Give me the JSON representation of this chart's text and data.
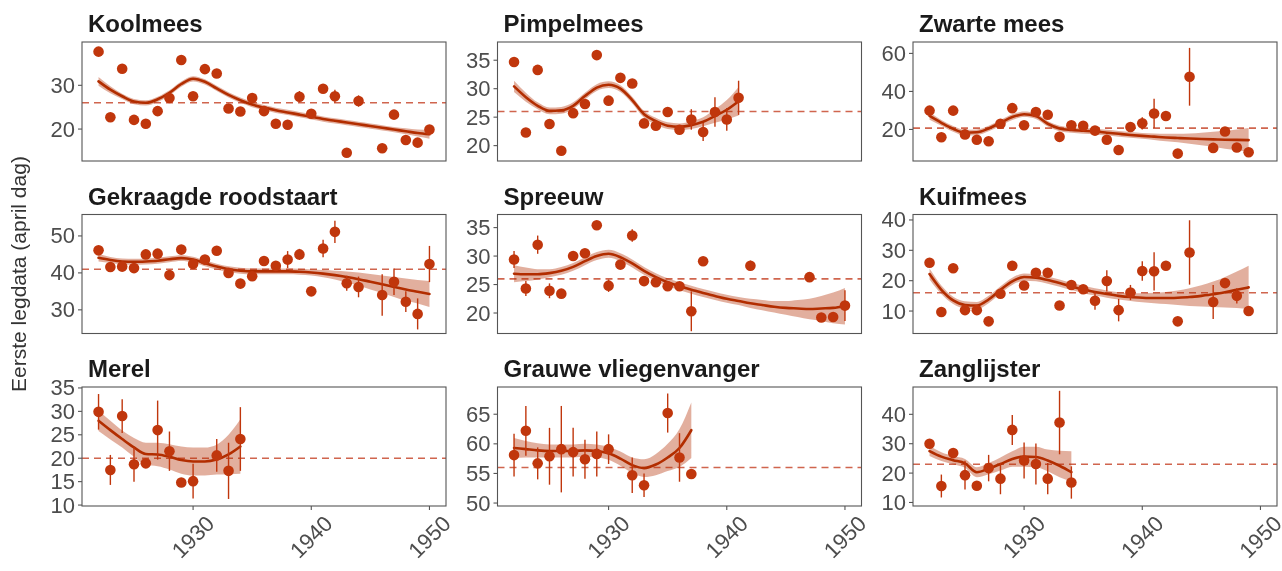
{
  "chart_data": [
    {
      "type": "scatter",
      "title": "Koolmees",
      "xlim": [
        1920.6,
        1951.4
      ],
      "ylim": [
        12.7,
        39.9
      ],
      "yticks": [
        20,
        30
      ],
      "tick_labels": "y",
      "series": [
        {
          "type": "scatter",
          "marker": "circle",
          "color": "#c0360c",
          "x": [
            1922,
            1923,
            1924,
            1925,
            1926,
            1927,
            1928,
            1929,
            1930,
            1931,
            1932,
            1933,
            1934,
            1935,
            1936,
            1937,
            1938,
            1939,
            1940,
            1941,
            1942,
            1943,
            1944,
            1946,
            1947,
            1948,
            1949,
            1950
          ],
          "values": [
            37.7,
            22.7,
            33.8,
            22.1,
            21.2,
            24.1,
            27.1,
            35.8,
            27.5,
            33.7,
            32.7,
            24.7,
            24.0,
            27.1,
            24.1,
            21.2,
            21.0,
            27.4,
            23.5,
            29.2,
            27.5,
            14.6,
            26.4,
            15.6,
            23.3,
            17.5,
            16.9,
            19.9
          ],
          "errors": [
            null,
            null,
            null,
            null,
            null,
            null,
            null,
            null,
            null,
            null,
            null,
            null,
            null,
            null,
            null,
            null,
            null,
            1.3,
            null,
            null,
            1.5,
            null,
            1.3,
            1.0,
            null,
            null,
            null,
            null
          ]
        },
        {
          "type": "line",
          "color": "#b22d00",
          "x": [
            1922,
            1923,
            1924,
            1925,
            1926,
            1927,
            1928,
            1929,
            1930,
            1931,
            1932,
            1933,
            1934,
            1935,
            1936,
            1937,
            1938,
            1939,
            1940,
            1941,
            1942,
            1943,
            1944,
            1945,
            1946,
            1947,
            1948,
            1949,
            1950
          ],
          "values": [
            30.9,
            29.0,
            27.5,
            26.3,
            26.0,
            26.8,
            28.3,
            30.3,
            31.5,
            30.8,
            29.3,
            27.8,
            26.6,
            25.6,
            24.9,
            24.3,
            23.8,
            23.3,
            22.8,
            22.3,
            21.9,
            21.5,
            21.1,
            20.7,
            20.3,
            19.9,
            19.5,
            19.1,
            18.8
          ],
          "lower": [
            29.9,
            28.2,
            26.9,
            25.7,
            25.4,
            26.2,
            27.7,
            29.7,
            30.9,
            30.2,
            28.7,
            27.2,
            26.0,
            25.0,
            24.3,
            23.7,
            23.2,
            22.7,
            22.2,
            21.7,
            21.3,
            20.9,
            20.5,
            20.1,
            19.7,
            19.3,
            18.8,
            18.3,
            17.8
          ],
          "upper": [
            31.9,
            29.8,
            28.1,
            26.9,
            26.6,
            27.4,
            28.9,
            30.9,
            32.1,
            31.4,
            29.9,
            28.4,
            27.2,
            26.2,
            25.5,
            24.9,
            24.4,
            23.9,
            23.4,
            22.9,
            22.5,
            22.1,
            21.7,
            21.3,
            20.9,
            20.5,
            20.2,
            19.9,
            19.8
          ]
        }
      ],
      "ref_lines": [
        {
          "axis": "y",
          "value": 26.0,
          "color": "#d0654e",
          "line_style": "dashed"
        }
      ]
    },
    {
      "type": "scatter",
      "title": "Pimpelmees",
      "xlim": [
        1920.6,
        1951.4
      ],
      "ylim": [
        17.3,
        38.2
      ],
      "yticks": [
        20,
        25,
        30,
        35
      ],
      "tick_labels": "y",
      "series": [
        {
          "type": "scatter",
          "marker": "circle",
          "color": "#c0360c",
          "x": [
            1922,
            1923,
            1924,
            1925,
            1926,
            1927,
            1928,
            1929,
            1930,
            1931,
            1932,
            1933,
            1934,
            1935,
            1936,
            1937,
            1938,
            1939,
            1940,
            1941
          ],
          "values": [
            34.7,
            22.3,
            33.3,
            23.8,
            19.1,
            25.7,
            27.3,
            35.9,
            27.9,
            31.9,
            30.9,
            23.9,
            23.5,
            25.9,
            22.8,
            24.6,
            22.4,
            25.9,
            24.6,
            28.4
          ],
          "errors": [
            null,
            null,
            null,
            null,
            null,
            null,
            null,
            null,
            null,
            null,
            null,
            null,
            null,
            null,
            null,
            1.8,
            1.6,
            2.6,
            2.0,
            3.0
          ]
        },
        {
          "type": "line",
          "color": "#b22d00",
          "x": [
            1922,
            1923,
            1924,
            1925,
            1926,
            1927,
            1928,
            1929,
            1930,
            1931,
            1932,
            1933,
            1934,
            1935,
            1936,
            1937,
            1938,
            1939,
            1940,
            1941
          ],
          "values": [
            30.4,
            28.5,
            27.0,
            26.1,
            26.2,
            27.0,
            28.7,
            30.2,
            30.7,
            30.0,
            28.0,
            25.5,
            24.3,
            23.5,
            23.3,
            23.6,
            24.2,
            25.2,
            26.3,
            27.8
          ],
          "lower": [
            29.4,
            27.7,
            26.4,
            25.5,
            25.6,
            26.4,
            28.1,
            29.6,
            30.1,
            29.4,
            27.4,
            24.9,
            23.7,
            22.9,
            22.7,
            22.9,
            23.4,
            24.0,
            24.6,
            25.3
          ],
          "upper": [
            31.4,
            29.3,
            27.6,
            26.7,
            26.8,
            27.6,
            29.3,
            30.8,
            31.3,
            30.6,
            28.6,
            26.1,
            24.9,
            24.1,
            23.9,
            24.3,
            25.0,
            26.4,
            28.0,
            30.3
          ]
        }
      ],
      "ref_lines": [
        {
          "axis": "y",
          "value": 26.0,
          "color": "#d0654e",
          "line_style": "dashed"
        }
      ]
    },
    {
      "type": "scatter",
      "title": "Zwarte mees",
      "xlim": [
        1920.6,
        1951.4
      ],
      "ylim": [
        3.4,
        66.0
      ],
      "yticks": [
        20,
        40,
        60
      ],
      "tick_labels": "y",
      "series": [
        {
          "type": "scatter",
          "marker": "circle",
          "color": "#c0360c",
          "x": [
            1922,
            1923,
            1924,
            1925,
            1926,
            1927,
            1928,
            1929,
            1930,
            1931,
            1932,
            1933,
            1934,
            1935,
            1936,
            1937,
            1938,
            1939,
            1940,
            1941,
            1942,
            1943,
            1944,
            1946,
            1947,
            1948,
            1949
          ],
          "values": [
            29.9,
            15.9,
            29.9,
            17.4,
            14.6,
            13.8,
            23.0,
            31.2,
            22.2,
            29.2,
            27.7,
            16.1,
            22.2,
            21.9,
            19.4,
            14.6,
            9.2,
            21.3,
            23.2,
            28.4,
            27.1,
            7.3,
            47.7,
            10.3,
            18.9,
            10.5,
            8.0
          ],
          "errors": [
            null,
            null,
            null,
            null,
            null,
            null,
            null,
            null,
            null,
            null,
            null,
            null,
            null,
            null,
            null,
            null,
            null,
            null,
            3.2,
            7.7,
            null,
            null,
            15.2,
            null,
            null,
            null,
            null
          ]
        },
        {
          "type": "line",
          "color": "#b22d00",
          "x": [
            1922,
            1923,
            1924,
            1925,
            1926,
            1927,
            1928,
            1929,
            1930,
            1931,
            1932,
            1933,
            1934,
            1935,
            1936,
            1937,
            1938,
            1939,
            1940,
            1941,
            1942,
            1943,
            1944,
            1945,
            1946,
            1947,
            1948,
            1949
          ],
          "values": [
            27.1,
            23.5,
            20.3,
            18.3,
            18.5,
            20.5,
            23.5,
            26.5,
            28.0,
            27.0,
            23.0,
            20.5,
            19.7,
            19.3,
            18.9,
            18.3,
            17.7,
            17.1,
            16.6,
            16.2,
            15.8,
            15.5,
            15.2,
            15.0,
            14.8,
            14.6,
            14.5,
            14.4
          ],
          "lower": [
            25.1,
            22.0,
            18.8,
            16.8,
            17.0,
            19.0,
            22.0,
            25.0,
            26.5,
            25.5,
            21.5,
            19.0,
            18.2,
            17.8,
            17.4,
            16.8,
            16.2,
            15.6,
            15.1,
            14.5,
            13.8,
            13.2,
            12.5,
            11.7,
            10.8,
            9.9,
            9.0,
            8.1
          ],
          "upper": [
            29.1,
            25.0,
            21.8,
            19.8,
            20.0,
            22.0,
            25.0,
            28.0,
            29.5,
            28.5,
            24.5,
            22.0,
            21.2,
            20.8,
            20.4,
            19.8,
            19.2,
            18.6,
            18.1,
            17.9,
            17.8,
            17.8,
            17.9,
            18.3,
            18.8,
            19.3,
            20.0,
            20.7
          ]
        }
      ],
      "ref_lines": [
        {
          "axis": "y",
          "value": 20.7,
          "color": "#d0654e",
          "line_style": "dashed"
        }
      ]
    },
    {
      "type": "scatter",
      "title": "Gekraagde roodstaart",
      "ylabel": "Eerste legdata (april dag)",
      "xlim": [
        1920.6,
        1951.4
      ],
      "ylim": [
        23.6,
        55.8
      ],
      "yticks": [
        30,
        40,
        50
      ],
      "tick_labels": "y",
      "series": [
        {
          "type": "scatter",
          "marker": "circle",
          "color": "#c0360c",
          "x": [
            1922,
            1923,
            1924,
            1925,
            1926,
            1927,
            1928,
            1929,
            1930,
            1931,
            1932,
            1933,
            1934,
            1935,
            1936,
            1937,
            1938,
            1939,
            1940,
            1941,
            1942,
            1943,
            1944,
            1946,
            1947,
            1948,
            1949,
            1950
          ],
          "values": [
            46.1,
            41.6,
            41.7,
            41.3,
            45.0,
            45.2,
            39.4,
            46.3,
            42.4,
            43.6,
            46.0,
            40.0,
            37.1,
            39.1,
            43.2,
            41.9,
            43.6,
            45.0,
            35.0,
            46.6,
            51.1,
            37.2,
            36.2,
            34.0,
            37.6,
            32.2,
            28.9,
            42.4
          ],
          "errors": [
            null,
            null,
            null,
            null,
            null,
            null,
            null,
            null,
            null,
            null,
            null,
            null,
            null,
            null,
            null,
            null,
            2.3,
            1.5,
            0.8,
            2.4,
            3.0,
            2.0,
            2.8,
            5.6,
            3.6,
            2.8,
            4.2,
            4.9
          ]
        },
        {
          "type": "line",
          "color": "#b22d00",
          "x": [
            1922,
            1923,
            1924,
            1925,
            1926,
            1927,
            1928,
            1929,
            1930,
            1931,
            1932,
            1933,
            1934,
            1935,
            1936,
            1937,
            1938,
            1939,
            1940,
            1941,
            1942,
            1943,
            1944,
            1945,
            1946,
            1947,
            1948,
            1949,
            1950
          ],
          "values": [
            44.1,
            43.5,
            43.1,
            43.0,
            43.1,
            43.3,
            43.7,
            44.0,
            43.6,
            42.6,
            41.7,
            41.0,
            40.6,
            40.4,
            40.4,
            40.4,
            40.4,
            40.3,
            40.1,
            39.8,
            39.4,
            38.9,
            38.3,
            37.6,
            36.9,
            36.2,
            35.5,
            34.9,
            34.3
          ],
          "lower": [
            43.1,
            42.7,
            42.3,
            42.2,
            42.3,
            42.5,
            42.9,
            43.2,
            42.8,
            41.8,
            40.9,
            40.2,
            39.8,
            39.6,
            39.6,
            39.6,
            39.6,
            39.5,
            39.3,
            38.8,
            38.2,
            37.4,
            36.5,
            35.5,
            34.5,
            33.5,
            32.5,
            31.7,
            30.8
          ],
          "upper": [
            45.1,
            44.3,
            43.9,
            43.8,
            43.9,
            44.1,
            44.5,
            44.8,
            44.4,
            43.4,
            42.5,
            41.8,
            41.4,
            41.2,
            41.2,
            41.2,
            41.2,
            41.1,
            40.9,
            40.8,
            40.6,
            40.4,
            40.1,
            39.7,
            39.3,
            38.9,
            38.5,
            38.1,
            37.8
          ]
        }
      ],
      "ref_lines": [
        {
          "axis": "y",
          "value": 41.0,
          "color": "#d0654e",
          "line_style": "dashed"
        }
      ]
    },
    {
      "type": "scatter",
      "title": "Spreeuw",
      "xlim": [
        1920.6,
        1951.4
      ],
      "ylim": [
        16.4,
        37.3
      ],
      "yticks": [
        20,
        25,
        30,
        35
      ],
      "tick_labels": "y",
      "series": [
        {
          "type": "scatter",
          "marker": "circle",
          "color": "#c0360c",
          "x": [
            1922,
            1923,
            1924,
            1925,
            1926,
            1927,
            1928,
            1929,
            1930,
            1931,
            1932,
            1933,
            1934,
            1935,
            1936,
            1937,
            1938,
            1942,
            1947,
            1948,
            1949,
            1950
          ],
          "values": [
            29.4,
            24.3,
            32.0,
            23.9,
            23.4,
            30.0,
            30.5,
            35.4,
            24.8,
            28.5,
            33.6,
            25.6,
            25.4,
            24.7,
            24.7,
            20.3,
            29.1,
            28.3,
            26.3,
            19.2,
            19.3,
            21.3
          ],
          "errors": [
            1.5,
            1.3,
            1.6,
            1.3,
            null,
            null,
            null,
            null,
            1.1,
            null,
            1.1,
            null,
            null,
            null,
            null,
            3.5,
            null,
            0.9,
            null,
            null,
            null,
            2.7
          ]
        },
        {
          "type": "line",
          "color": "#b22d00",
          "x": [
            1922,
            1923,
            1924,
            1925,
            1926,
            1927,
            1928,
            1929,
            1930,
            1931,
            1932,
            1933,
            1934,
            1935,
            1936,
            1937,
            1938,
            1939,
            1940,
            1941,
            1942,
            1943,
            1944,
            1945,
            1946,
            1947,
            1948,
            1949,
            1950
          ],
          "values": [
            26.9,
            26.8,
            26.8,
            27.0,
            27.4,
            28.1,
            29.1,
            30.0,
            30.4,
            29.8,
            28.7,
            27.4,
            26.3,
            25.4,
            24.7,
            24.1,
            23.5,
            23.0,
            22.5,
            22.1,
            21.7,
            21.4,
            21.1,
            20.9,
            20.8,
            20.7,
            20.8,
            20.9,
            21.2
          ],
          "lower": [
            25.4,
            25.6,
            25.9,
            26.3,
            26.7,
            27.4,
            28.4,
            29.3,
            29.7,
            29.1,
            28.0,
            26.7,
            25.6,
            24.7,
            24.0,
            23.4,
            22.8,
            22.3,
            21.8,
            21.4,
            20.9,
            20.5,
            20.1,
            19.7,
            19.3,
            18.9,
            18.6,
            18.2,
            18.0
          ],
          "upper": [
            28.4,
            28.0,
            27.7,
            27.7,
            28.1,
            28.8,
            29.8,
            30.7,
            31.1,
            30.5,
            29.4,
            28.1,
            27.0,
            26.1,
            25.4,
            24.8,
            24.2,
            23.7,
            23.2,
            22.8,
            22.5,
            22.3,
            22.1,
            22.1,
            22.3,
            22.5,
            23.0,
            23.6,
            24.4
          ]
        }
      ],
      "ref_lines": [
        {
          "axis": "y",
          "value": 26.0,
          "color": "#d0654e",
          "line_style": "dashed"
        }
      ]
    },
    {
      "type": "scatter",
      "title": "Kuifmees",
      "xlim": [
        1920.6,
        1951.4
      ],
      "ylim": [
        2.6,
        41.8
      ],
      "yticks": [
        10,
        20,
        30,
        40
      ],
      "tick_labels": "y",
      "series": [
        {
          "type": "scatter",
          "marker": "circle",
          "color": "#c0360c",
          "x": [
            1922,
            1923,
            1924,
            1925,
            1926,
            1927,
            1928,
            1929,
            1930,
            1931,
            1932,
            1933,
            1934,
            1935,
            1936,
            1937,
            1938,
            1939,
            1940,
            1941,
            1942,
            1943,
            1944,
            1946,
            1947,
            1948,
            1949
          ],
          "values": [
            25.9,
            9.7,
            24.1,
            10.3,
            10.3,
            6.6,
            15.7,
            24.9,
            18.4,
            22.6,
            22.6,
            11.8,
            18.6,
            17.2,
            13.4,
            19.9,
            10.3,
            16.1,
            23.2,
            23.1,
            24.9,
            6.6,
            29.3,
            13.0,
            19.2,
            15.0,
            10.0
          ],
          "errors": [
            null,
            null,
            null,
            null,
            null,
            null,
            null,
            null,
            null,
            null,
            1.5,
            null,
            null,
            null,
            3.0,
            3.5,
            3.7,
            2.5,
            3.2,
            6.3,
            null,
            1.5,
            10.6,
            5.6,
            null,
            2.5,
            null
          ]
        },
        {
          "type": "line",
          "color": "#b22d00",
          "x": [
            1922,
            1923,
            1924,
            1925,
            1926,
            1927,
            1928,
            1929,
            1930,
            1931,
            1932,
            1933,
            1934,
            1935,
            1936,
            1937,
            1938,
            1939,
            1940,
            1941,
            1942,
            1943,
            1944,
            1945,
            1946,
            1947,
            1948,
            1949
          ],
          "values": [
            22.2,
            17.0,
            13.5,
            12.0,
            11.8,
            13.8,
            17.0,
            19.8,
            21.2,
            21.0,
            20.2,
            19.2,
            18.1,
            17.1,
            16.3,
            15.6,
            15.0,
            14.6,
            14.4,
            14.3,
            14.3,
            14.4,
            14.6,
            15.0,
            15.5,
            16.2,
            17.0,
            17.8
          ],
          "lower": [
            20.4,
            15.6,
            12.3,
            10.8,
            10.6,
            12.6,
            15.8,
            18.6,
            20.0,
            19.8,
            19.0,
            18.0,
            16.9,
            15.9,
            15.1,
            14.4,
            13.8,
            13.3,
            12.9,
            12.6,
            12.3,
            12.0,
            11.7,
            11.5,
            11.3,
            11.2,
            11.0,
            10.7
          ],
          "upper": [
            24.0,
            18.4,
            14.7,
            13.2,
            13.0,
            15.0,
            18.2,
            21.0,
            22.4,
            22.2,
            21.4,
            20.4,
            19.3,
            18.3,
            17.5,
            16.8,
            16.2,
            15.9,
            15.9,
            16.0,
            16.3,
            16.8,
            17.5,
            18.5,
            19.7,
            21.2,
            23.0,
            24.9
          ]
        }
      ],
      "ref_lines": [
        {
          "axis": "y",
          "value": 16.0,
          "color": "#d0654e",
          "line_style": "dashed"
        }
      ]
    },
    {
      "type": "scatter",
      "title": "Merel",
      "xlim": [
        1920.6,
        1951.4
      ],
      "xticks": [
        1930,
        1940,
        1950
      ],
      "ylim": [
        9.8,
        35.2
      ],
      "yticks": [
        10,
        15,
        20,
        25,
        30,
        35
      ],
      "series": [
        {
          "type": "scatter",
          "marker": "circle",
          "color": "#c0360c",
          "x": [
            1922,
            1923,
            1924,
            1925,
            1926,
            1927,
            1928,
            1929,
            1930,
            1932,
            1933,
            1934
          ],
          "values": [
            29.9,
            17.5,
            29.0,
            18.7,
            18.9,
            26.0,
            21.5,
            14.8,
            15.1,
            20.6,
            17.3,
            24.1
          ],
          "errors": [
            3.8,
            3.2,
            3.6,
            3.7,
            null,
            6.3,
            4.2,
            null,
            3.7,
            3.5,
            6.0,
            6.8
          ]
        },
        {
          "type": "line",
          "color": "#b22d00",
          "x": [
            1922,
            1923,
            1924,
            1925,
            1926,
            1927,
            1928,
            1929,
            1930,
            1931,
            1932,
            1933,
            1934
          ],
          "values": [
            28.0,
            26.0,
            24.1,
            22.3,
            20.9,
            20.8,
            20.3,
            19.6,
            19.3,
            19.3,
            19.7,
            20.8,
            22.5
          ],
          "lower": [
            25.8,
            24.0,
            22.3,
            20.3,
            18.5,
            18.3,
            17.6,
            16.7,
            16.3,
            16.3,
            16.5,
            16.6,
            16.7
          ],
          "upper": [
            30.2,
            28.0,
            25.9,
            24.3,
            23.3,
            23.3,
            23.0,
            22.5,
            22.3,
            22.3,
            22.9,
            25.0,
            28.3
          ]
        }
      ],
      "ref_lines": [
        {
          "axis": "y",
          "value": 20.0,
          "color": "#d0654e",
          "line_style": "dashed"
        }
      ]
    },
    {
      "type": "scatter",
      "title": "Grauwe vliegenvanger",
      "xlim": [
        1920.6,
        1951.4
      ],
      "xticks": [
        1930,
        1940,
        1950
      ],
      "ylim": [
        49.5,
        69.6
      ],
      "yticks": [
        50,
        55,
        60,
        65
      ],
      "series": [
        {
          "type": "scatter",
          "marker": "circle",
          "color": "#c0360c",
          "x": [
            1922,
            1923,
            1924,
            1925,
            1926,
            1927,
            1928,
            1929,
            1930,
            1932,
            1933,
            1935,
            1936,
            1937
          ],
          "values": [
            58.1,
            62.2,
            56.7,
            57.9,
            59.1,
            58.6,
            57.4,
            58.3,
            59.1,
            54.7,
            53.0,
            65.2,
            57.7,
            54.9
          ],
          "errors": [
            3.6,
            4.2,
            2.7,
            4.8,
            7.3,
            4.1,
            3.3,
            3.8,
            2.5,
            3.0,
            2.0,
            3.3,
            4.1,
            null
          ]
        },
        {
          "type": "line",
          "color": "#b22d00",
          "x": [
            1922,
            1923,
            1924,
            1925,
            1926,
            1927,
            1928,
            1929,
            1930,
            1931,
            1932,
            1933,
            1934,
            1935,
            1936,
            1937
          ],
          "values": [
            59.3,
            59.1,
            58.9,
            58.8,
            58.8,
            58.8,
            58.9,
            58.8,
            58.4,
            57.5,
            56.4,
            55.9,
            56.5,
            57.7,
            59.3,
            62.3
          ],
          "lower": [
            57.6,
            57.7,
            57.7,
            57.7,
            57.7,
            57.7,
            57.8,
            57.7,
            57.3,
            56.3,
            55.1,
            54.4,
            54.7,
            55.4,
            56.1,
            57.6
          ],
          "upper": [
            61.0,
            60.5,
            60.1,
            59.9,
            59.9,
            59.9,
            60.0,
            59.9,
            59.5,
            58.7,
            57.7,
            57.4,
            58.3,
            60.0,
            62.5,
            67.0
          ]
        }
      ],
      "ref_lines": [
        {
          "axis": "y",
          "value": 56.0,
          "color": "#d0654e",
          "line_style": "dashed"
        }
      ]
    },
    {
      "type": "scatter",
      "title": "Zanglijster",
      "xlim": [
        1920.6,
        1951.4
      ],
      "xticks": [
        1930,
        1940,
        1950
      ],
      "ylim": [
        8.8,
        49.3
      ],
      "yticks": [
        10,
        20,
        30,
        40
      ],
      "series": [
        {
          "type": "scatter",
          "marker": "circle",
          "color": "#c0360c",
          "x": [
            1922,
            1923,
            1924,
            1925,
            1926,
            1927,
            1928,
            1929,
            1930,
            1931,
            1932,
            1933,
            1934
          ],
          "values": [
            30.0,
            15.6,
            26.8,
            19.3,
            15.7,
            21.7,
            18.1,
            34.7,
            24.3,
            23.1,
            18.1,
            37.2,
            16.8
          ],
          "errors": [
            1.5,
            3.9,
            1.5,
            4.9,
            null,
            4.5,
            5.3,
            5.1,
            6.1,
            7.0,
            5.3,
            10.8,
            5.5
          ]
        },
        {
          "type": "line",
          "color": "#b22d00",
          "x": [
            1922,
            1923,
            1924,
            1925,
            1926,
            1927,
            1928,
            1929,
            1930,
            1931,
            1932,
            1933,
            1934
          ],
          "values": [
            27.5,
            25.6,
            24.4,
            23.3,
            20.3,
            21.5,
            23.1,
            24.8,
            25.6,
            25.5,
            24.3,
            22.5,
            20.3
          ],
          "lower": [
            25.8,
            24.1,
            23.0,
            21.8,
            18.6,
            19.6,
            20.9,
            22.2,
            22.2,
            22.0,
            20.6,
            18.6,
            17.2
          ],
          "upper": [
            29.2,
            27.1,
            25.8,
            24.8,
            22.0,
            23.4,
            25.3,
            27.4,
            29.0,
            29.0,
            28.0,
            27.6,
            27.4
          ]
        }
      ],
      "ref_lines": [
        {
          "axis": "y",
          "value": 23.0,
          "color": "#d0654e",
          "line_style": "dashed"
        }
      ]
    }
  ]
}
